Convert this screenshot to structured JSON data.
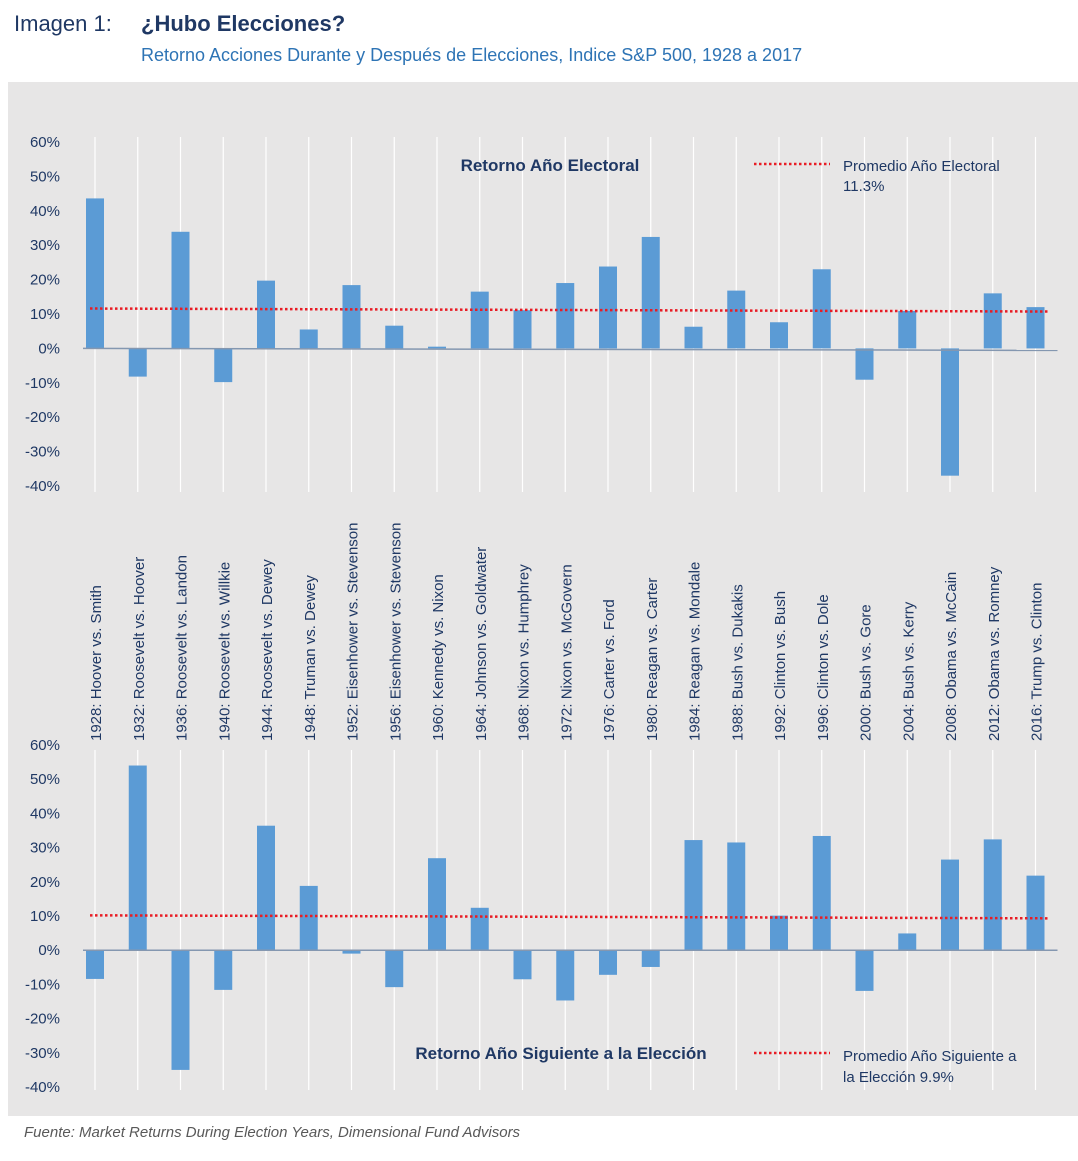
{
  "header": {
    "label": "Imagen 1:",
    "title": "¿Hubo Elecciones?",
    "subtitle": "Retorno Acciones Durante y Después de Elecciones, Indice S&P 500, 1928 a 2017"
  },
  "source": "Fuente: Market Returns During Election Years, Dimensional Fund Advisors",
  "colors": {
    "bar": "#5b9bd5",
    "avg_line": "#e81c24",
    "title_text": "#1f3864",
    "panel": "#e7e6e6"
  },
  "chart_data": [
    {
      "type": "bar",
      "title": "Retorno Año Electoral",
      "categories": [
        "1928: Hoover vs. Smith",
        "1932: Roosevelt vs. Hoover",
        "1936: Roosevelt vs. Landon",
        "1940: Roosevelt vs. Willkie",
        "1944: Roosevelt vs. Dewey",
        "1948: Truman vs. Dewey",
        "1952: Eisenhower vs. Stevenson",
        "1956: Eisenhower vs. Stevenson",
        "1960: Kennedy vs. Nixon",
        "1964: Johnson vs. Goldwater",
        "1968: Nixon vs. Humphrey",
        "1972: Nixon vs. McGovern",
        "1976: Carter vs. Ford",
        "1980: Reagan vs. Carter",
        "1984: Reagan vs. Mondale",
        "1988: Bush vs. Dukakis",
        "1992: Clinton vs. Bush",
        "1996: Clinton vs. Dole",
        "2000: Bush vs. Gore",
        "2004: Bush vs. Kerry",
        "2008: Obama vs. McCain",
        "2012: Obama vs. Romney",
        "2016: Trump vs. Clinton"
      ],
      "values": [
        43.6,
        -8.2,
        33.9,
        -9.8,
        19.7,
        5.5,
        18.4,
        6.6,
        0.5,
        16.5,
        11.1,
        19.0,
        23.8,
        32.4,
        6.3,
        16.8,
        7.6,
        23.0,
        -9.1,
        10.9,
        -37.0,
        16.0,
        12.0
      ],
      "average": {
        "label": "Promedio Año Electoral",
        "value_label": "11.3%",
        "value": 11.3
      },
      "ylim": [
        -40,
        60
      ],
      "yticks": [
        "60%",
        "50%",
        "40%",
        "30%",
        "20%",
        "10%",
        "0%",
        "-10%",
        "-20%",
        "-30%",
        "-40%"
      ],
      "grid": "vertical",
      "legend": "top-right"
    },
    {
      "type": "bar",
      "title": "Retorno Año Siguiente a la Elección",
      "categories": [
        "1928: Hoover vs. Smith",
        "1932: Roosevelt vs. Hoover",
        "1936: Roosevelt vs. Landon",
        "1940: Roosevelt vs. Willkie",
        "1944: Roosevelt vs. Dewey",
        "1948: Truman vs. Dewey",
        "1952: Eisenhower vs. Stevenson",
        "1956: Eisenhower vs. Stevenson",
        "1960: Kennedy vs. Nixon",
        "1964: Johnson vs. Goldwater",
        "1968: Nixon vs. Humphrey",
        "1972: Nixon vs. McGovern",
        "1976: Carter vs. Ford",
        "1980: Reagan vs. Carter",
        "1984: Reagan vs. Mondale",
        "1988: Bush vs. Dukakis",
        "1992: Clinton vs. Bush",
        "1996: Clinton vs. Dole",
        "2000: Bush vs. Gore",
        "2004: Bush vs. Kerry",
        "2008: Obama vs. McCain",
        "2012: Obama vs. Romney",
        "2016: Trump vs. Clinton"
      ],
      "values": [
        -8.4,
        54.0,
        -35.0,
        -11.6,
        36.4,
        18.8,
        -1.0,
        -10.8,
        26.9,
        12.4,
        -8.5,
        -14.7,
        -7.2,
        -4.9,
        32.2,
        31.5,
        10.1,
        33.4,
        -11.9,
        4.9,
        26.5,
        32.4,
        21.8
      ],
      "average": {
        "label": "Promedio Año Siguiente a",
        "label_line2": "la Elección 9.9%",
        "value": 9.9
      },
      "ylim": [
        -40,
        60
      ],
      "yticks": [
        "60%",
        "50%",
        "40%",
        "30%",
        "20%",
        "10%",
        "0%",
        "-10%",
        "-20%",
        "-30%",
        "-40%"
      ],
      "grid": "vertical",
      "legend": "bottom-right"
    }
  ]
}
